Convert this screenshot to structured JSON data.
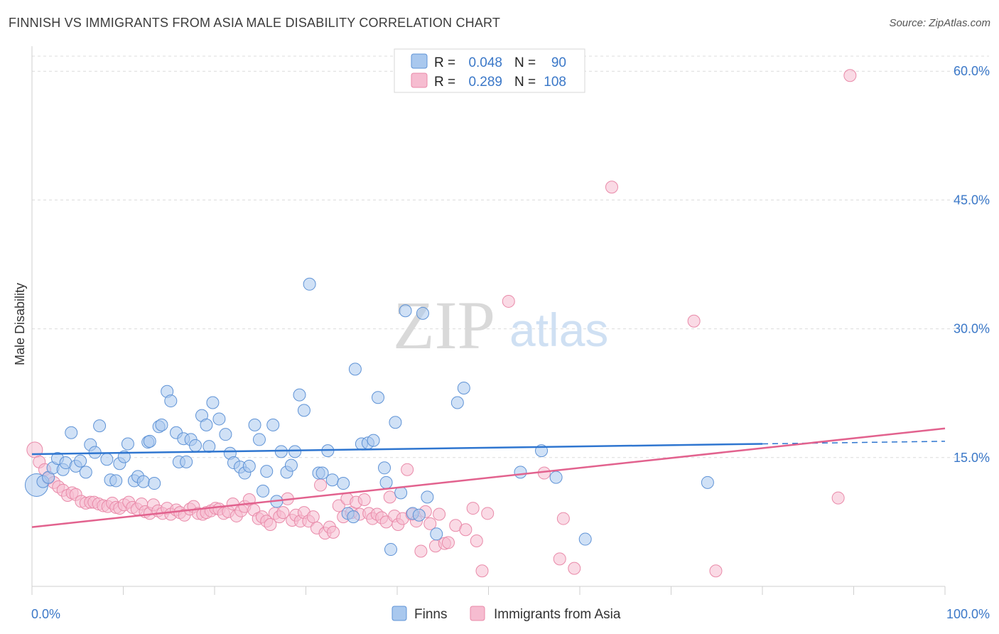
{
  "title": "FINNISH VS IMMIGRANTS FROM ASIA MALE DISABILITY CORRELATION CHART",
  "source": "Source: ZipAtlas.com",
  "watermark": {
    "zip": "ZIP",
    "atlas": "atlas"
  },
  "colors": {
    "finns_fill": "#a9c8ee",
    "finns_stroke": "#5f93d6",
    "finns_line": "#2f76d0",
    "asia_fill": "#f6bcd0",
    "asia_stroke": "#e98aa9",
    "asia_line": "#e2628e",
    "grid": "#dcdcdc",
    "tick_text": "#3b78c8"
  },
  "legend": {
    "rows": [
      {
        "r_label": "R =",
        "r_value": "0.048",
        "n_label": "N =",
        "n_value": "90"
      },
      {
        "r_label": "R =",
        "r_value": "0.289",
        "n_label": "N =",
        "n_value": "108"
      }
    ]
  },
  "bottom_legend": [
    "Finns",
    "Immigrants from Asia"
  ],
  "chart_data": {
    "type": "scatter",
    "title": "FINNISH VS IMMIGRANTS FROM ASIA MALE DISABILITY CORRELATION CHART",
    "xlabel": "",
    "ylabel": "Male Disability",
    "xlim": [
      0,
      100
    ],
    "ylim": [
      0,
      62.5
    ],
    "x_tick_labels": [
      "0.0%",
      "100.0%"
    ],
    "y_ticks": [
      15,
      30,
      45,
      60
    ],
    "y_tick_labels": [
      "15.0%",
      "30.0%",
      "45.0%",
      "60.0%"
    ],
    "grid": true,
    "legend_position": "top-center",
    "series": [
      {
        "name": "Finns",
        "R": 0.048,
        "N": 90,
        "trend": {
          "x": [
            0,
            80
          ],
          "y": [
            15.4,
            16.6
          ],
          "dashed_to": [
            100,
            16.9
          ]
        },
        "x": [
          0.5,
          1.2,
          1.8,
          2.3,
          2.8,
          3.4,
          3.7,
          4.3,
          4.8,
          5.3,
          5.9,
          6.4,
          6.9,
          7.4,
          8.2,
          8.6,
          9.2,
          9.6,
          10.1,
          10.5,
          11.2,
          11.6,
          12.2,
          12.7,
          12.9,
          13.4,
          13.9,
          14.2,
          14.8,
          15.2,
          15.8,
          16.1,
          16.6,
          16.9,
          17.4,
          17.9,
          18.6,
          19.1,
          19.4,
          19.8,
          20.5,
          21.2,
          21.7,
          22.1,
          22.8,
          23.3,
          23.8,
          24.4,
          24.9,
          25.3,
          25.7,
          26.4,
          26.8,
          27.3,
          27.9,
          28.4,
          28.8,
          29.3,
          29.8,
          30.4,
          31.4,
          31.8,
          32.4,
          32.9,
          34.1,
          34.6,
          35.2,
          35.4,
          36.1,
          36.8,
          37.4,
          37.9,
          38.6,
          38.8,
          39.3,
          39.8,
          40.4,
          40.9,
          41.7,
          42.4,
          42.8,
          43.3,
          44.3,
          46.6,
          47.3,
          53.5,
          55.8,
          57.4,
          60.6,
          74.0
        ],
        "y": [
          11.8,
          12.2,
          12.7,
          13.8,
          14.9,
          13.6,
          14.4,
          17.9,
          14.0,
          14.6,
          13.3,
          16.5,
          15.6,
          18.7,
          14.8,
          12.4,
          12.3,
          14.3,
          15.1,
          16.6,
          12.3,
          12.8,
          12.2,
          16.8,
          16.9,
          12.0,
          18.6,
          18.8,
          22.7,
          21.6,
          17.9,
          14.5,
          17.2,
          14.5,
          17.1,
          16.4,
          19.9,
          18.8,
          16.3,
          21.4,
          19.5,
          17.7,
          15.5,
          14.4,
          13.9,
          13.2,
          14.0,
          18.8,
          17.1,
          11.1,
          13.4,
          18.8,
          9.9,
          15.7,
          13.3,
          14.1,
          15.7,
          22.3,
          20.5,
          35.2,
          13.2,
          13.2,
          15.8,
          12.4,
          12.0,
          8.5,
          8.1,
          25.3,
          16.6,
          16.7,
          17.0,
          22.0,
          13.8,
          12.1,
          4.3,
          19.1,
          10.9,
          32.1,
          8.5,
          8.3,
          31.8,
          10.4,
          6.1,
          21.4,
          23.1,
          13.3,
          15.8,
          12.7,
          5.5,
          12.1
        ]
      },
      {
        "name": "Immigrants from Asia",
        "R": 0.289,
        "N": 108,
        "trend": {
          "x": [
            0,
            100
          ],
          "y": [
            6.9,
            18.4
          ]
        },
        "x": [
          0.3,
          0.8,
          1.4,
          1.8,
          2.4,
          2.9,
          3.4,
          3.9,
          4.4,
          4.8,
          5.4,
          5.9,
          6.4,
          6.8,
          7.3,
          7.8,
          8.3,
          8.8,
          9.2,
          9.6,
          10.1,
          10.6,
          11.0,
          11.5,
          12.0,
          12.4,
          12.9,
          13.3,
          13.8,
          14.3,
          14.8,
          15.2,
          15.8,
          16.2,
          16.7,
          17.3,
          17.7,
          18.2,
          18.7,
          19.1,
          19.6,
          20.1,
          20.5,
          21.0,
          21.5,
          22.0,
          22.4,
          22.9,
          23.3,
          23.8,
          24.3,
          24.8,
          25.2,
          25.7,
          26.1,
          26.6,
          27.1,
          27.5,
          28.0,
          28.5,
          28.9,
          29.4,
          29.8,
          30.3,
          30.8,
          31.2,
          31.6,
          32.1,
          32.6,
          33.0,
          33.6,
          34.1,
          34.5,
          35.0,
          35.5,
          35.9,
          36.4,
          36.9,
          37.3,
          37.8,
          38.3,
          38.8,
          39.2,
          39.7,
          40.1,
          40.6,
          41.1,
          41.6,
          42.1,
          42.6,
          43.1,
          43.6,
          44.2,
          44.6,
          45.2,
          45.6,
          46.4,
          47.5,
          48.3,
          48.7,
          49.3,
          49.9,
          52.2,
          56.1,
          57.8,
          58.2,
          59.4,
          63.5,
          72.5,
          74.9,
          88.3,
          89.6
        ],
        "y": [
          15.9,
          14.5,
          13.6,
          12.6,
          12.1,
          11.6,
          11.2,
          10.6,
          10.9,
          10.7,
          9.9,
          9.7,
          9.8,
          9.8,
          9.6,
          9.4,
          9.3,
          9.7,
          9.2,
          9.1,
          9.5,
          9.8,
          9.2,
          9.0,
          9.6,
          8.7,
          8.5,
          9.5,
          8.8,
          8.5,
          9.1,
          8.4,
          8.9,
          8.6,
          8.3,
          9.0,
          9.3,
          8.5,
          8.4,
          8.6,
          8.8,
          9.1,
          9.0,
          8.5,
          8.7,
          9.6,
          8.2,
          8.8,
          9.3,
          10.1,
          8.9,
          7.9,
          8.1,
          7.6,
          7.2,
          8.5,
          8.1,
          8.6,
          10.2,
          7.7,
          8.3,
          7.6,
          8.6,
          7.6,
          8.1,
          6.8,
          11.8,
          6.2,
          6.9,
          6.3,
          9.4,
          8.1,
          10.2,
          8.6,
          9.8,
          8.4,
          10.1,
          8.5,
          7.9,
          8.4,
          8.0,
          7.5,
          10.4,
          8.2,
          7.2,
          7.9,
          13.6,
          8.4,
          7.6,
          4.1,
          8.7,
          7.3,
          4.7,
          8.4,
          5.0,
          5.1,
          7.1,
          6.6,
          9.1,
          5.3,
          1.8,
          8.5,
          33.2,
          13.2,
          3.2,
          7.9,
          2.1,
          46.5,
          30.9,
          1.8,
          10.3,
          59.5
        ]
      }
    ]
  }
}
